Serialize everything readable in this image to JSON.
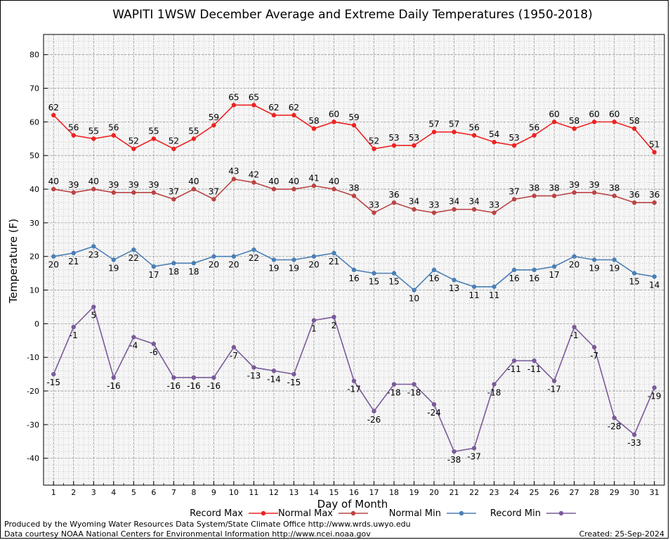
{
  "chart_data": {
    "type": "line",
    "title": "WAPITI 1WSW December Average and Extreme Daily Temperatures (1950-2018)",
    "xlabel": "Day of Month",
    "ylabel": "Temperature (F)",
    "x": [
      1,
      2,
      3,
      4,
      5,
      6,
      7,
      8,
      9,
      10,
      11,
      12,
      13,
      14,
      15,
      16,
      17,
      18,
      19,
      20,
      21,
      22,
      23,
      24,
      25,
      26,
      27,
      28,
      29,
      30,
      31
    ],
    "xlim": [
      0.5,
      31.5
    ],
    "ylim": [
      -48,
      86
    ],
    "yticks": [
      -40,
      -30,
      -20,
      -10,
      0,
      10,
      20,
      30,
      40,
      50,
      60,
      70,
      80
    ],
    "grid": true,
    "legend_position": "bottom",
    "series": [
      {
        "name": "Record Max",
        "color": "#ee2222",
        "values": [
          62,
          56,
          55,
          56,
          52,
          55,
          52,
          55,
          59,
          65,
          65,
          62,
          62,
          58,
          60,
          59,
          52,
          53,
          53,
          57,
          57,
          56,
          54,
          53,
          56,
          60,
          58,
          60,
          60,
          58,
          51
        ],
        "label_position": "above"
      },
      {
        "name": "Normal Max",
        "color": "#bb4444",
        "values": [
          40,
          39,
          40,
          39,
          39,
          39,
          37,
          40,
          37,
          43,
          42,
          40,
          40,
          41,
          40,
          38,
          33,
          36,
          34,
          33,
          34,
          34,
          33,
          37,
          38,
          38,
          39,
          39,
          38,
          36,
          36
        ],
        "label_position": "above"
      },
      {
        "name": "Normal Min",
        "color": "#4a7fb5",
        "values": [
          20,
          21,
          23,
          19,
          22,
          17,
          18,
          18,
          20,
          20,
          22,
          19,
          19,
          20,
          21,
          16,
          15,
          15,
          10,
          16,
          13,
          11,
          11,
          16,
          16,
          17,
          20,
          19,
          19,
          15,
          14
        ],
        "label_position": "below"
      },
      {
        "name": "Record Min",
        "color": "#7a5a9a",
        "values": [
          -15,
          -1,
          5,
          -16,
          -4,
          -6,
          -16,
          -16,
          -16,
          -7,
          -13,
          -14,
          -15,
          1,
          2,
          -17,
          -26,
          -18,
          -18,
          -24,
          -38,
          -37,
          -18,
          -11,
          -11,
          -17,
          -1,
          -7,
          -28,
          -33,
          -19
        ],
        "label_position": "below"
      }
    ]
  },
  "footer": {
    "produced_by": "Produced by the Wyoming Water Resources Data System/State Climate Office http://www.wrds.uwyo.edu",
    "data_courtesy": "Data courtesy NOAA National Centers for Environmental Information http://www.ncei.noaa.gov",
    "created": "Created:  25-Sep-2024"
  }
}
